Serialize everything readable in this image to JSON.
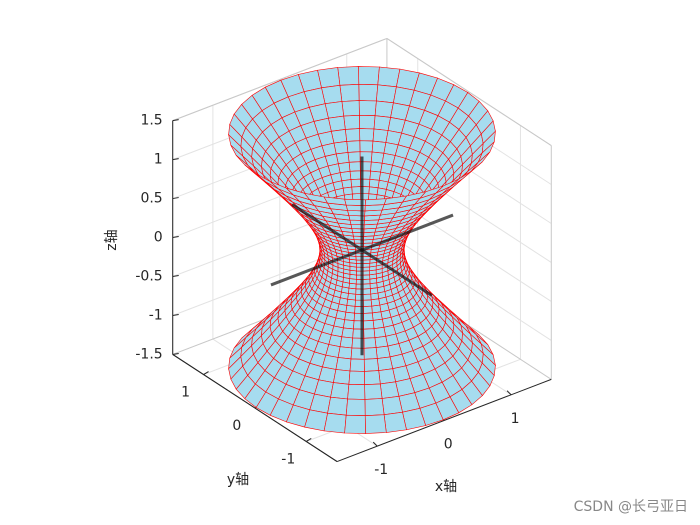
{
  "chart_data": {
    "type": "surface3d",
    "xlabel": "x轴",
    "ylabel": "y轴",
    "zlabel": "z轴",
    "xlim": [
      -1.6,
      1.6
    ],
    "ylim": [
      -1.6,
      1.6
    ],
    "zlim": [
      -1.5,
      1.5
    ],
    "xticks": [
      -1,
      0,
      1
    ],
    "yticks": [
      -1,
      0,
      1
    ],
    "zticks": [
      -1.5,
      -1,
      -0.5,
      0,
      0.5,
      1,
      1.5
    ],
    "view": {
      "azimuth": -37.5,
      "elevation": 30
    },
    "waist_radius": 0.5,
    "face_color": "#a6dcef",
    "edge_color": "#ff0000",
    "grid": true
  },
  "watermark": "CSDN @长弓亚日"
}
